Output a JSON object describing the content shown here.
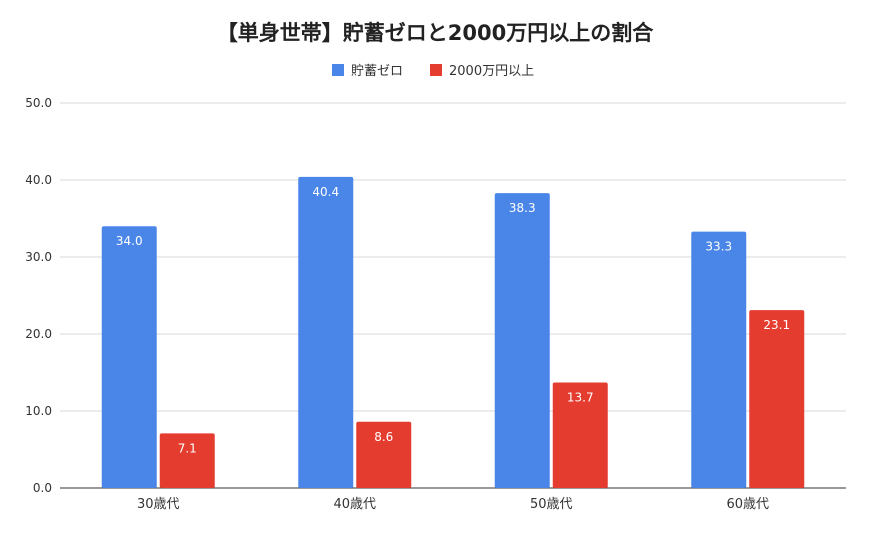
{
  "chart_data": {
    "type": "bar",
    "title": "【単身世帯】貯蓄ゼロと2000万円以上の割合",
    "categories": [
      "30歳代",
      "40歳代",
      "50歳代",
      "60歳代"
    ],
    "series": [
      {
        "name": "貯蓄ゼロ",
        "values": [
          34.0,
          40.4,
          38.3,
          33.3
        ],
        "color": "#4A86E8",
        "labels": [
          "34.0",
          "40.4",
          "38.3",
          "33.3"
        ]
      },
      {
        "name": "2000万円以上",
        "values": [
          7.1,
          8.6,
          13.7,
          23.1
        ],
        "color": "#E53C30",
        "labels": [
          "7.1",
          "8.6",
          "13.7",
          "23.1"
        ]
      }
    ],
    "yticks": [
      "0.0",
      "10.0",
      "20.0",
      "30.0",
      "40.0",
      "50.0"
    ],
    "ylim": [
      0,
      50
    ],
    "grid": true,
    "legend": "top-center"
  }
}
